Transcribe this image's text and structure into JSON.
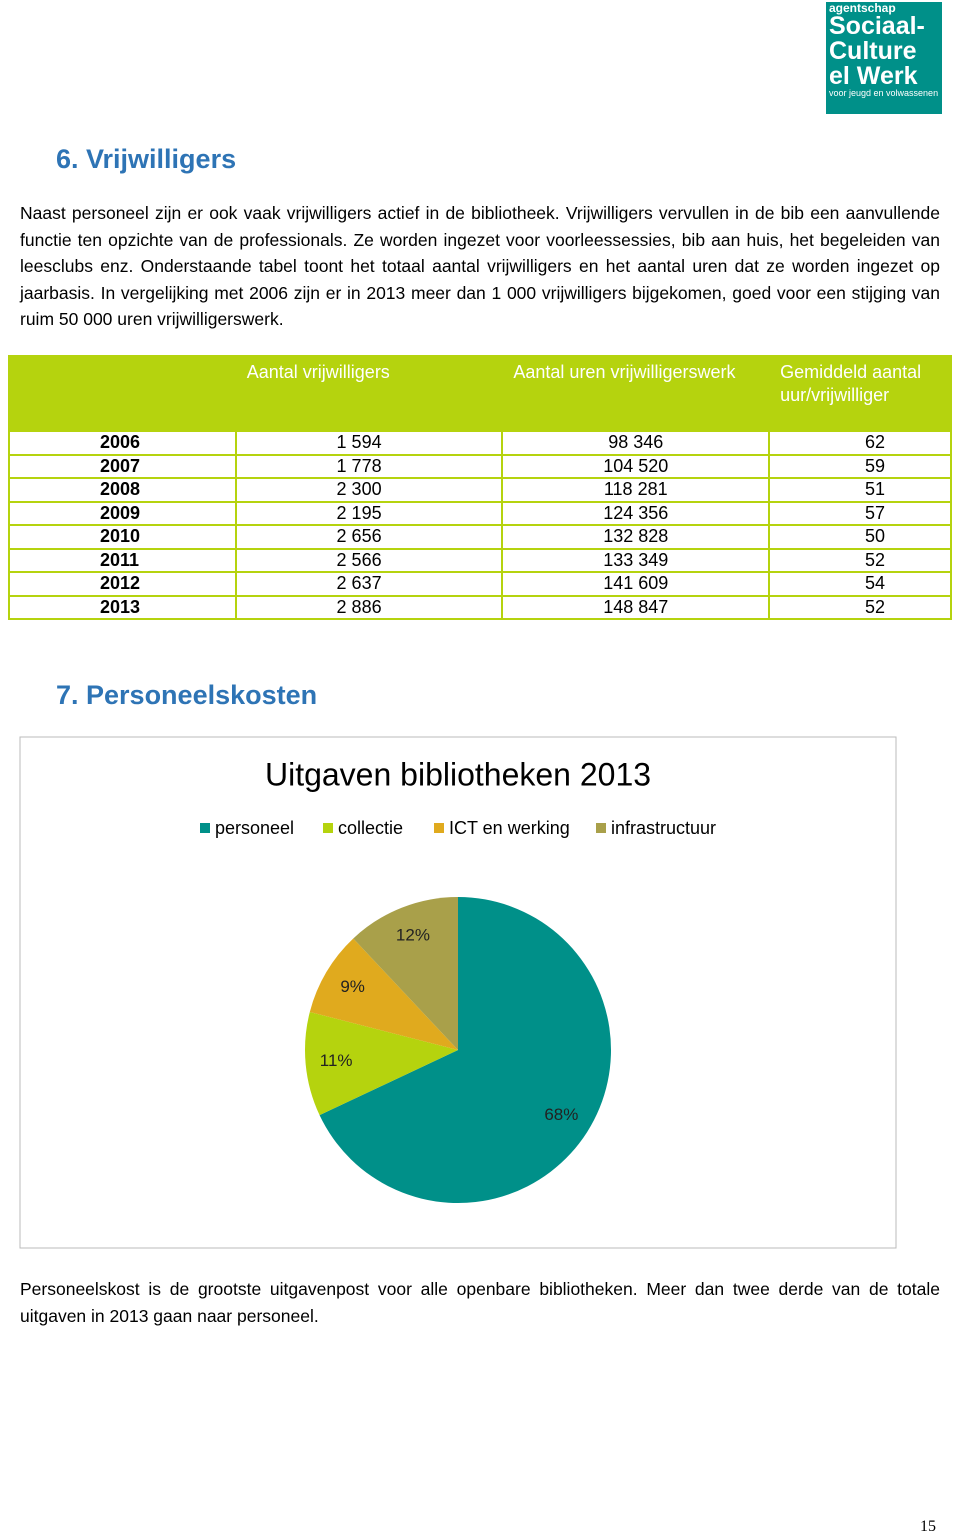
{
  "logo": {
    "lines": [
      "agentschap",
      "Sociaal-",
      "Culture",
      "el Werk",
      "voor jeugd en volwassenen"
    ]
  },
  "section6": {
    "heading": "6. Vrijwilligers",
    "paragraph": "Naast personeel zijn er ook vaak vrijwilligers actief in de bibliotheek. Vrijwilligers vervullen in de bib een aanvullende functie ten opzichte van de professionals. Ze worden ingezet voor voorleessessies, bib aan huis, het begeleiden van leesclubs enz. Onderstaande tabel toont het totaal aantal vrijwilligers en het aantal uren dat ze worden ingezet op jaarbasis. In vergelijking met 2006 zijn er in 2013 meer dan 1 000 vrijwilligers bijgekomen, goed voor een stijging van ruim 50 000 uren vrijwilligerswerk."
  },
  "table": {
    "header": [
      "Aantal vrijwilligers",
      "Aantal uren vrijwilligerswerk",
      "Gemiddeld aantal uur/vrijwilliger"
    ],
    "rows": [
      [
        "2006",
        "1 594",
        "98 346",
        "62"
      ],
      [
        "2007",
        "1 778",
        "104 520",
        "59"
      ],
      [
        "2008",
        "2 300",
        "118 281",
        "51"
      ],
      [
        "2009",
        "2 195",
        "124 356",
        "57"
      ],
      [
        "2010",
        "2 656",
        "132 828",
        "50"
      ],
      [
        "2011",
        "2 566",
        "133 349",
        "52"
      ],
      [
        "2012",
        "2 637",
        "141 609",
        "54"
      ],
      [
        "2013",
        "2 886",
        "148 847",
        "52"
      ]
    ]
  },
  "section7": {
    "heading": "7. Personeelskosten",
    "paragraph": "Personeelskost is de grootste uitgavenpost  voor alle openbare bibliotheken. Meer dan twee derde van de totale uitgaven in 2013 gaan naar personeel."
  },
  "chart_data": {
    "type": "pie",
    "title": "Uitgaven bibliotheken 2013",
    "categories": [
      "personeel",
      "collectie",
      "ICT en werking",
      "infrastructuur"
    ],
    "values": [
      68,
      11,
      9,
      12
    ],
    "value_labels": [
      "68%",
      "11%",
      "9%",
      "12%"
    ],
    "colors": [
      "#009089",
      "#b5d30e",
      "#e0aa1e",
      "#a9a04a"
    ],
    "legend": "top"
  },
  "page_number": "15"
}
